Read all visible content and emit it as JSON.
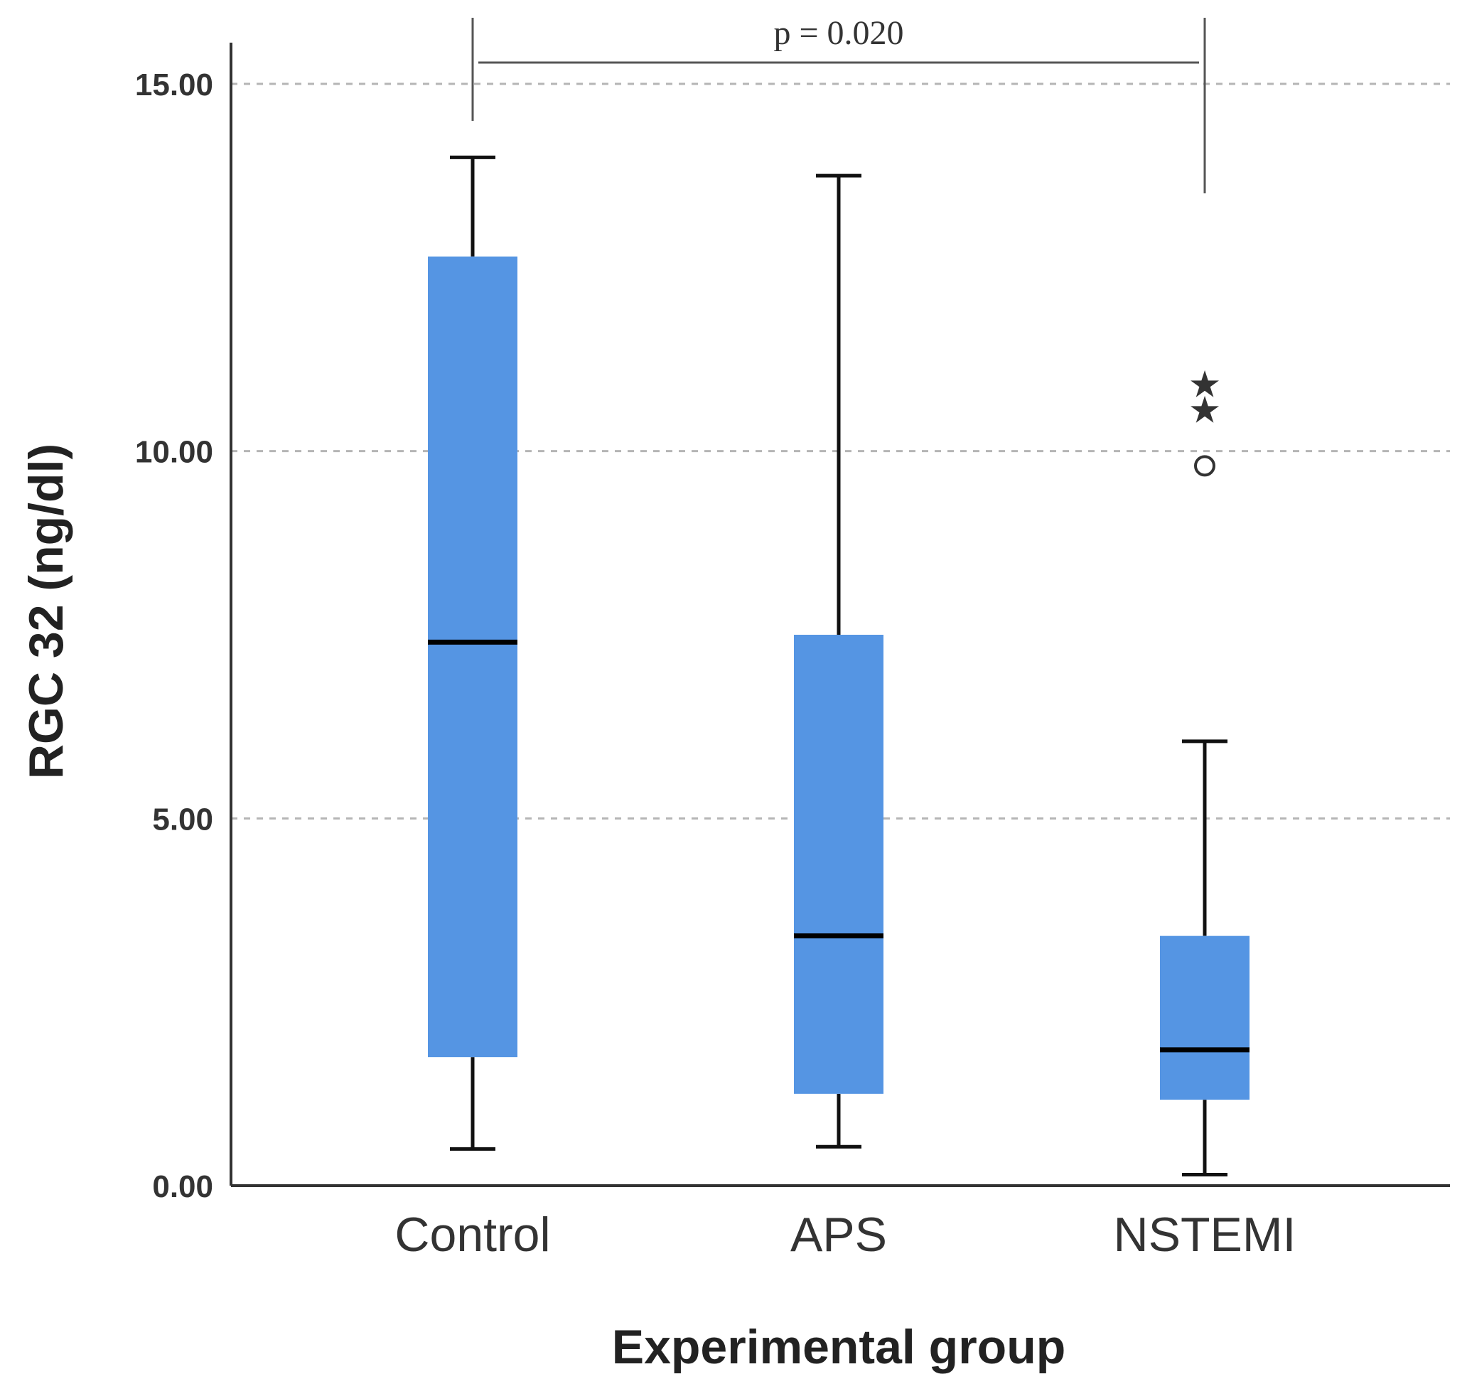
{
  "chart_data": {
    "type": "box",
    "xlabel": "Experimental group",
    "ylabel": "RGC 32 (ng/dl)",
    "ylim": [
      0,
      15
    ],
    "yticks": [
      {
        "value": 0,
        "label": "0.00"
      },
      {
        "value": 5,
        "label": "5.00"
      },
      {
        "value": 10,
        "label": "10.00"
      },
      {
        "value": 15,
        "label": "15.00"
      }
    ],
    "grid": "horizontal-dashed",
    "box_color": "#5595E3",
    "groups": [
      {
        "label": "Control",
        "whisker_low": 0.5,
        "q1": 1.75,
        "median": 7.4,
        "q3": 12.65,
        "whisker_high": 14.0,
        "outliers": [],
        "extremes": []
      },
      {
        "label": "APS",
        "whisker_low": 0.53,
        "q1": 1.25,
        "median": 3.4,
        "q3": 7.5,
        "whisker_high": 13.75,
        "outliers": [],
        "extremes": []
      },
      {
        "label": "NSTEMI",
        "whisker_low": 0.15,
        "q1": 1.17,
        "median": 1.85,
        "q3": 3.4,
        "whisker_high": 6.05,
        "outliers": [
          9.8
        ],
        "extremes": [
          10.6,
          10.95
        ]
      }
    ],
    "annotation": {
      "text": "p = 0.020",
      "from_group": 0,
      "to_group": 2
    }
  }
}
